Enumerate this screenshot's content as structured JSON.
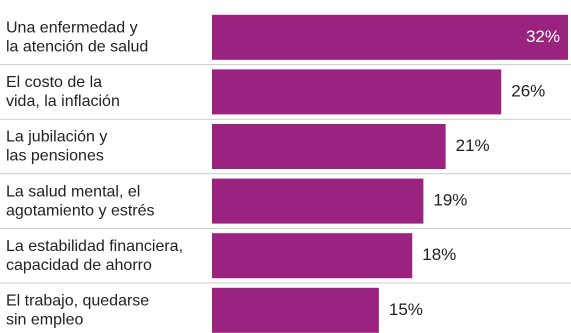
{
  "chart_data": {
    "type": "hbar",
    "categories": [
      [
        "Una enfermedad y",
        "la atención de salud"
      ],
      [
        "El costo de la",
        "vida, la inflación"
      ],
      [
        "La jubilación y",
        "las pensiones"
      ],
      [
        "La salud mental, el",
        "agotamiento y  estrés"
      ],
      [
        "La estabilidad financiera,",
        "capacidad de ahorro"
      ],
      [
        "El trabajo, quedarse",
        "sin empleo"
      ]
    ],
    "values": [
      32,
      26,
      21,
      19,
      18,
      15
    ],
    "value_labels": [
      "32%",
      "26%",
      "21%",
      "19%",
      "18%",
      "15%"
    ],
    "color": "#9b2380"
  }
}
